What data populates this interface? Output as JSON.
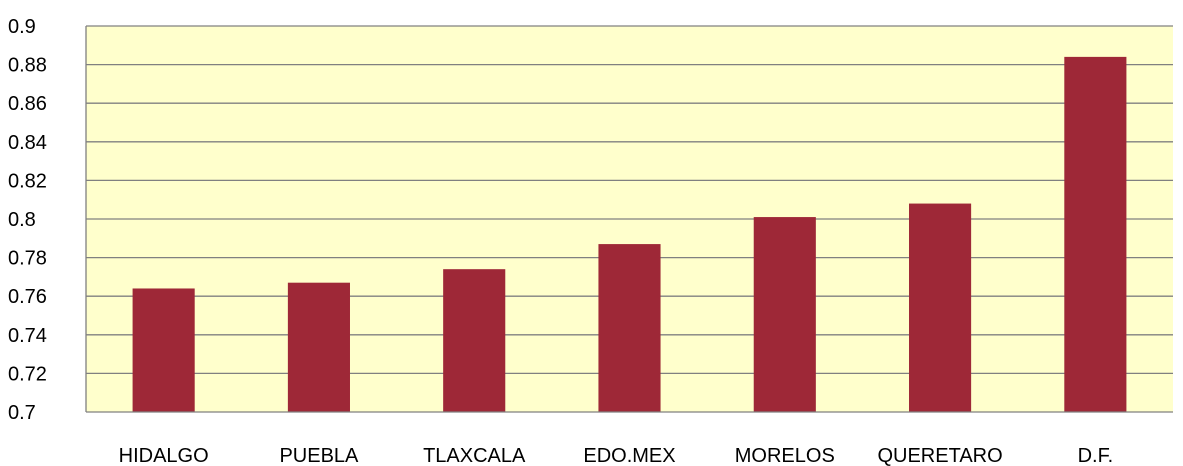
{
  "chart_data": {
    "type": "bar",
    "title": "",
    "xlabel": "",
    "ylabel": "",
    "categories": [
      "HIDALGO",
      "PUEBLA",
      "TLAXCALA",
      "EDO.MEX",
      "MORELOS",
      "QUERETARO",
      "D.F."
    ],
    "values": [
      0.764,
      0.767,
      0.774,
      0.787,
      0.801,
      0.808,
      0.884
    ],
    "ylim": [
      0.7,
      0.9
    ],
    "yticks": [
      "0.7",
      "0.72",
      "0.74",
      "0.76",
      "0.78",
      "0.8",
      "0.82",
      "0.84",
      "0.86",
      "0.88",
      "0.9"
    ],
    "grid": true,
    "legend": "none",
    "colors": {
      "bar": "#9E2837",
      "plot_background": "#FFFFCC",
      "gridline": "#808080",
      "axis": "#808080"
    }
  }
}
